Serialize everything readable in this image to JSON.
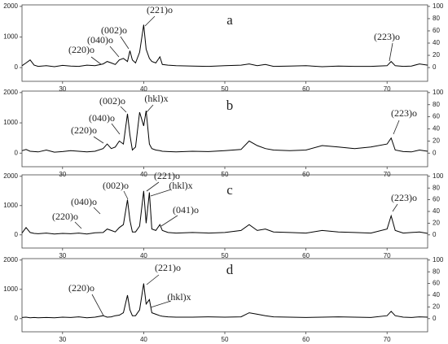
{
  "chart_data": [
    {
      "type": "line",
      "title": "a",
      "color": "#000000",
      "x": [
        25,
        25.5,
        26,
        26.5,
        27,
        28,
        29,
        30,
        31,
        32,
        33,
        34,
        35,
        35.5,
        36,
        36.5,
        37,
        37.5,
        38,
        38.3,
        38.6,
        39,
        39.5,
        40,
        40.3,
        40.7,
        41,
        41.5,
        42,
        42.3,
        43,
        44,
        46,
        48,
        50,
        52,
        53,
        54,
        55,
        56,
        58,
        60,
        62,
        64,
        66,
        68,
        70,
        70.5,
        71,
        72,
        73,
        74,
        75
      ],
      "values": [
        60,
        150,
        250,
        80,
        40,
        60,
        30,
        70,
        50,
        40,
        80,
        60,
        120,
        200,
        150,
        100,
        250,
        300,
        200,
        550,
        250,
        150,
        500,
        1400,
        600,
        300,
        200,
        150,
        350,
        100,
        80,
        60,
        50,
        40,
        60,
        80,
        120,
        60,
        100,
        40,
        50,
        60,
        30,
        50,
        40,
        40,
        60,
        200,
        60,
        40,
        50,
        120,
        80
      ],
      "annotations": [
        "(221)o",
        "(002)o",
        "(040)o",
        "(220)o",
        "(223)o"
      ],
      "xlim": [
        25,
        75
      ],
      "xticks": [
        30,
        40,
        50,
        60,
        70
      ],
      "ylim": [
        -450,
        2050
      ],
      "yticks": [
        0,
        1000,
        2000
      ],
      "y2lim": [
        -22.5,
        102.5
      ],
      "y2ticks": [
        0,
        20,
        40,
        60,
        80,
        100
      ],
      "grid": false
    },
    {
      "type": "line",
      "title": "b",
      "color": "#000000",
      "x": [
        25,
        25.5,
        26,
        26.5,
        27,
        28,
        29,
        30,
        31,
        32,
        33,
        34,
        35,
        35.5,
        36,
        36.5,
        37,
        37.5,
        38,
        38.3,
        38.6,
        39,
        39.5,
        40,
        40.3,
        40.7,
        41,
        41.5,
        42,
        42.3,
        43,
        44,
        46,
        48,
        50,
        52,
        53,
        54,
        55,
        56,
        58,
        60,
        62,
        64,
        66,
        68,
        70,
        70.5,
        71,
        72,
        73,
        74,
        75
      ],
      "values": [
        80,
        120,
        60,
        50,
        40,
        100,
        30,
        50,
        80,
        60,
        40,
        60,
        150,
        300,
        150,
        200,
        400,
        300,
        1300,
        600,
        100,
        200,
        1350,
        900,
        1400,
        300,
        150,
        100,
        80,
        60,
        50,
        40,
        60,
        50,
        80,
        120,
        400,
        250,
        150,
        100,
        80,
        100,
        250,
        200,
        150,
        200,
        300,
        500,
        100,
        50,
        40,
        100,
        60
      ],
      "annotations": [
        "(002)o",
        "(hkl)x",
        "(040)o",
        "(220)o",
        "(223)o"
      ],
      "xlim": [
        25,
        75
      ],
      "xticks": [
        30,
        40,
        50,
        60,
        70
      ],
      "ylim": [
        -450,
        2050
      ],
      "yticks": [
        0,
        1000,
        2000
      ],
      "y2lim": [
        -22.5,
        102.5
      ],
      "y2ticks": [
        0,
        20,
        40,
        60,
        80,
        100
      ],
      "grid": false
    },
    {
      "type": "line",
      "title": "c",
      "color": "#000000",
      "x": [
        25,
        25.5,
        26,
        26.5,
        27,
        28,
        29,
        30,
        31,
        32,
        33,
        34,
        35,
        35.5,
        36,
        36.5,
        37,
        37.5,
        38,
        38.3,
        38.6,
        39,
        39.5,
        40,
        40.3,
        40.7,
        41,
        41.5,
        42,
        42.3,
        43,
        44,
        46,
        48,
        50,
        52,
        53,
        54,
        55,
        56,
        58,
        60,
        62,
        64,
        66,
        68,
        70,
        70.5,
        71,
        72,
        73,
        74,
        75
      ],
      "values": [
        60,
        250,
        80,
        50,
        40,
        60,
        30,
        50,
        40,
        60,
        30,
        70,
        80,
        200,
        150,
        100,
        250,
        350,
        1200,
        500,
        100,
        100,
        300,
        1500,
        400,
        1450,
        200,
        150,
        350,
        150,
        80,
        60,
        80,
        60,
        80,
        150,
        350,
        150,
        200,
        100,
        80,
        60,
        150,
        100,
        80,
        60,
        200,
        650,
        150,
        60,
        80,
        100,
        50
      ],
      "annotations": [
        "(221)o",
        "(hkl)x",
        "(002)o",
        "(040)o",
        "(220)o",
        "(041)o",
        "(223)o"
      ],
      "xlim": [
        25,
        75
      ],
      "xticks": [
        30,
        40,
        50,
        60,
        70
      ],
      "ylim": [
        -450,
        2050
      ],
      "yticks": [
        0,
        1000,
        2000
      ],
      "y2lim": [
        -22.5,
        102.5
      ],
      "y2ticks": [
        0,
        20,
        40,
        60,
        80,
        100
      ],
      "grid": false
    },
    {
      "type": "line",
      "title": "d",
      "color": "#000000",
      "x": [
        25,
        25.5,
        26,
        26.5,
        27,
        28,
        29,
        30,
        31,
        32,
        33,
        34,
        35,
        35.5,
        36,
        36.5,
        37,
        37.5,
        38,
        38.3,
        38.6,
        39,
        39.5,
        40,
        40.3,
        40.7,
        41,
        41.5,
        42,
        42.3,
        43,
        44,
        46,
        48,
        50,
        52,
        53,
        54,
        55,
        56,
        58,
        60,
        62,
        64,
        66,
        68,
        70,
        70.5,
        71,
        72,
        73,
        74,
        75
      ],
      "values": [
        40,
        50,
        30,
        40,
        30,
        40,
        30,
        50,
        40,
        60,
        30,
        50,
        100,
        50,
        60,
        100,
        120,
        200,
        800,
        300,
        100,
        100,
        300,
        1200,
        500,
        650,
        200,
        150,
        100,
        80,
        60,
        50,
        50,
        60,
        50,
        60,
        200,
        150,
        100,
        60,
        50,
        40,
        50,
        60,
        50,
        40,
        100,
        250,
        100,
        50,
        40,
        60,
        50
      ],
      "annotations": [
        "(221)o",
        "(hkl)x",
        "(220)o"
      ],
      "xlim": [
        25,
        75
      ],
      "xticks": [
        30,
        40,
        50,
        60,
        70
      ],
      "ylim": [
        -450,
        2050
      ],
      "yticks": [
        0,
        1000,
        2000
      ],
      "y2lim": [
        -22.5,
        102.5
      ],
      "y2ticks": [
        0,
        20,
        40,
        60,
        80,
        100
      ],
      "grid": false
    }
  ]
}
